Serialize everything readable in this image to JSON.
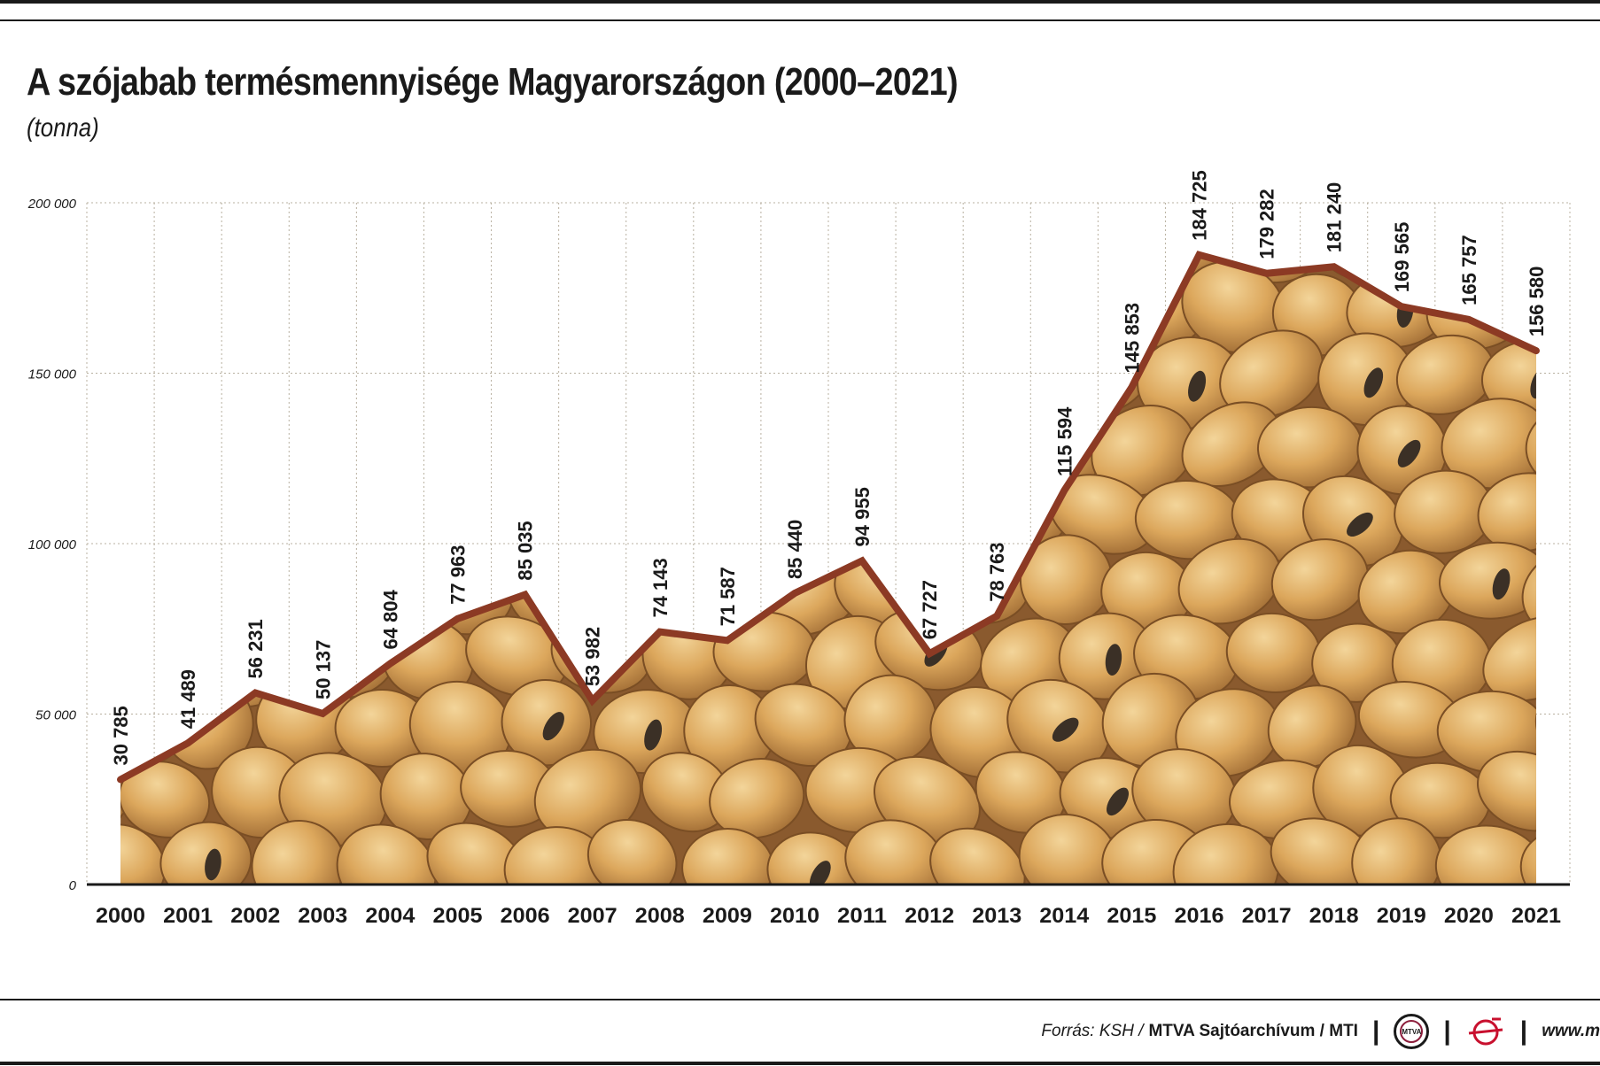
{
  "header": {
    "title": "A szójabab termésmennyisége Magyarországon (2000–2021)",
    "subtitle": "(tonna)"
  },
  "chart_data": {
    "type": "area",
    "title": "A szójabab termésmennyisége Magyarországon (2000–2021)",
    "ylabel": "(tonna)",
    "xlabel": "",
    "ylim": [
      0,
      200000
    ],
    "yticks": [
      {
        "value": 0,
        "label": "0"
      },
      {
        "value": 50000,
        "label": "50 000"
      },
      {
        "value": 100000,
        "label": "100 000"
      },
      {
        "value": 150000,
        "label": "150 000"
      },
      {
        "value": 200000,
        "label": "200 000"
      }
    ],
    "grid": true,
    "legend": "none",
    "series": [
      {
        "values": [
          30785,
          41489,
          56231,
          50137,
          64804,
          77963,
          85035,
          53982,
          74143,
          71587,
          85440,
          94955,
          67727,
          78763,
          115594,
          145853,
          184725,
          179282,
          181240,
          169565,
          165757,
          156580
        ],
        "value_labels": [
          "30 785",
          "41 489",
          "56 231",
          "50 137",
          "64 804",
          "77 963",
          "85 035",
          "53 982",
          "74 143",
          "71 587",
          "85 440",
          "94 955",
          "67 727",
          "78 763",
          "115 594",
          "145 853",
          "184 725",
          "179 282",
          "181 240",
          "169 565",
          "165 757",
          "156 580"
        ]
      }
    ],
    "categories": [
      "2000",
      "2001",
      "2002",
      "2003",
      "2004",
      "2005",
      "2006",
      "2007",
      "2008",
      "2009",
      "2010",
      "2011",
      "2012",
      "2013",
      "2014",
      "2015",
      "2016",
      "2017",
      "2018",
      "2019",
      "2020",
      "2021"
    ],
    "colors": {
      "line": "#8c3a24",
      "fill": "#d9a45a",
      "grid": "#b8b0a0",
      "text": "#1a1a1a"
    }
  },
  "footer": {
    "source_label": "Forrás: KSH /",
    "source_main": "MTVA Sajtóarchívum / MTI",
    "logo_text": "MTVA",
    "url": "www.m"
  }
}
